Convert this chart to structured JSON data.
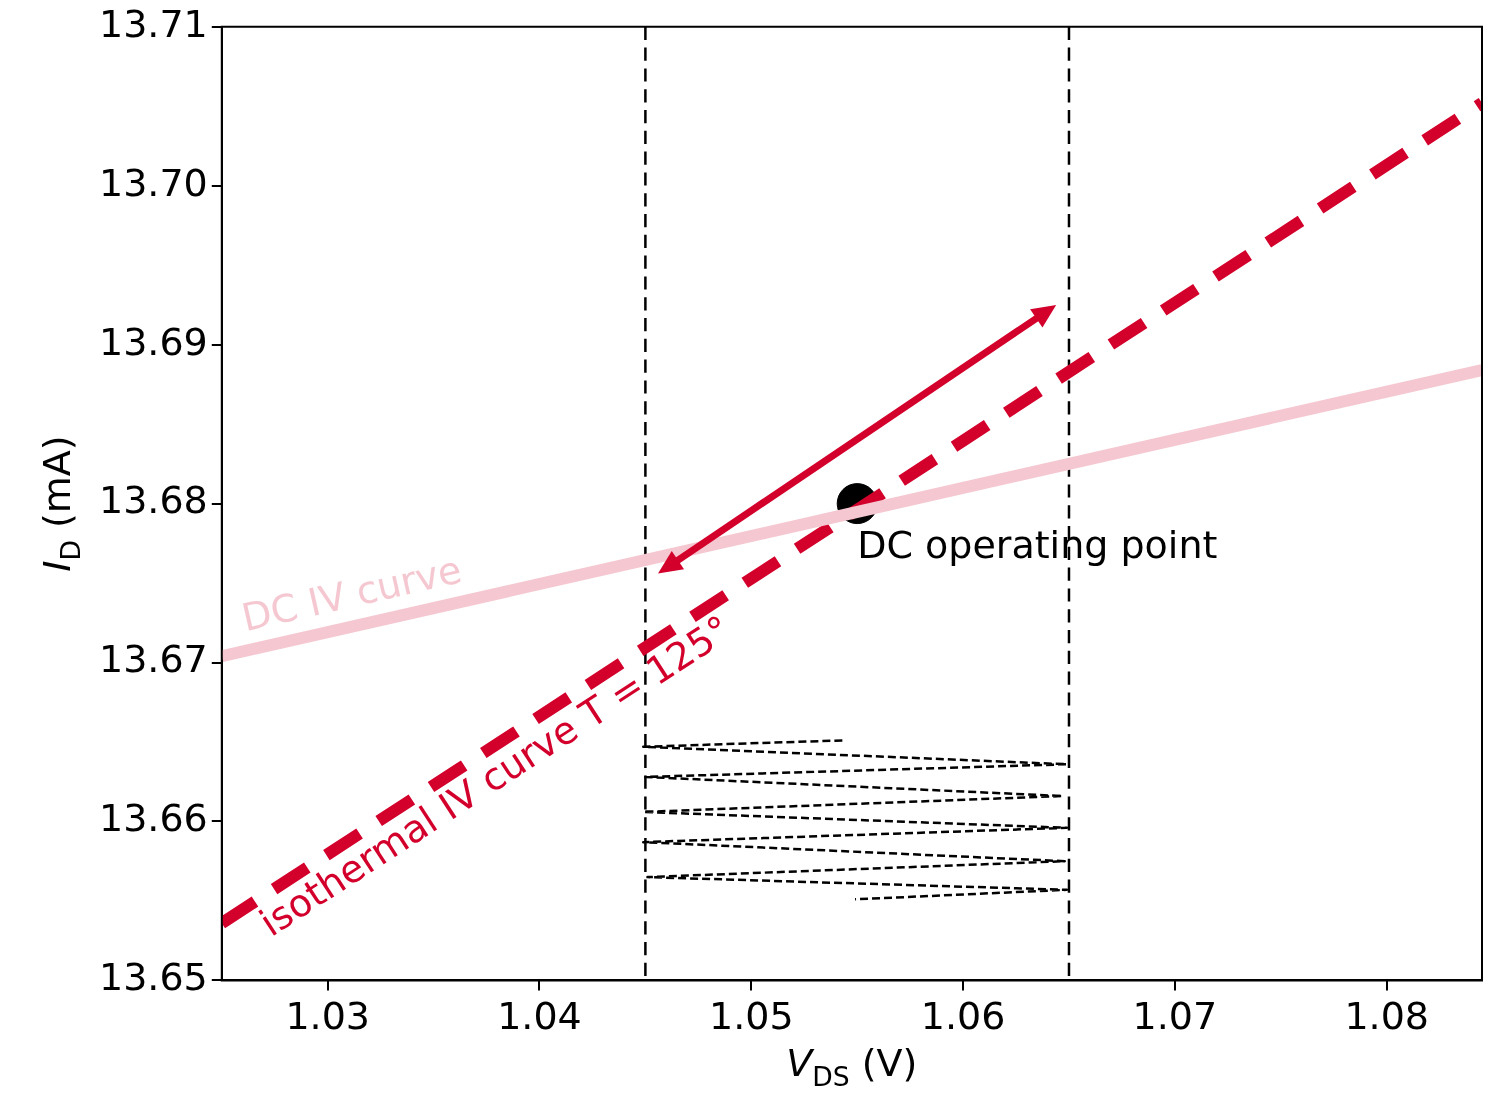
{
  "chart_data": {
    "type": "line",
    "xlabel": "V$_{DS}$ (V)",
    "ylabel": "I$_{D}$ (mA)",
    "xlim": [
      1.025,
      1.0845
    ],
    "xticks": [
      1.03,
      1.04,
      1.05,
      1.06,
      1.07,
      1.08
    ],
    "ylim": [
      13.65,
      13.71
    ],
    "yticks": [
      13.65,
      13.66,
      13.67,
      13.68,
      13.69,
      {
        "value": 13.7,
        "label": "13.70"
      },
      13.71
    ],
    "grid": false,
    "series": [
      {
        "color": "#f5c8d1",
        "x": [
          1.025,
          1.0845
        ],
        "values": [
          13.6704,
          13.6884
        ]
      },
      {
        "line_style": "dashed",
        "color": "#d4002c",
        "x": [
          1.025,
          1.0845
        ],
        "values": [
          13.6536,
          13.7052
        ]
      },
      {
        "line_style": "dashed",
        "color": "#000000",
        "x": [
          1.0543,
          1.0449,
          1.0649,
          1.045,
          1.0647,
          1.0449,
          1.0649,
          1.0449,
          1.0648,
          1.0451,
          1.0649,
          1.0549
        ],
        "values": [
          13.6651,
          13.6647,
          13.6636,
          13.6628,
          13.6616,
          13.6606,
          13.6596,
          13.6587,
          13.6575,
          13.6565,
          13.6557,
          13.6551
        ]
      },
      {
        "type": "scatter",
        "marker": "circle",
        "color": "#000000",
        "x": [
          1.055
        ],
        "values": [
          13.68
        ]
      }
    ],
    "annotations": [
      "DC IV curve",
      "isothermal IV curve T = 125°",
      "DC operating point"
    ],
    "ref_lines": [
      {
        "axis": "x",
        "value": 1.045,
        "line_style": "dashed",
        "color": "#000000"
      },
      {
        "axis": "x",
        "value": 1.065,
        "line_style": "dashed",
        "color": "#000000"
      }
    ]
  }
}
